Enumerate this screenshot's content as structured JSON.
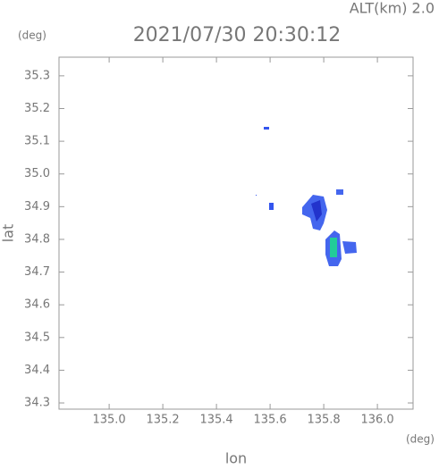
{
  "chart_data": {
    "type": "heatmap",
    "title": "2021/07/30 20:30:12",
    "annotation": "ALT(km) 2.0",
    "ylabel_unit": "(deg)",
    "xlabel_unit": "(deg)",
    "xlabel": "lon",
    "ylabel": "lat",
    "xlim": [
      134.813,
      136.133
    ],
    "ylim": [
      34.281,
      35.357
    ],
    "xticks": [
      {
        "value": 135,
        "label": "135.0"
      },
      135.2,
      135.4,
      135.6,
      135.8,
      {
        "value": 136,
        "label": "136.0"
      }
    ],
    "yticks": [
      34.3,
      34.4,
      34.5,
      34.6,
      34.7,
      34.8,
      34.9,
      {
        "value": 35,
        "label": "35.0"
      },
      35.1,
      35.2,
      35.3
    ]
  }
}
